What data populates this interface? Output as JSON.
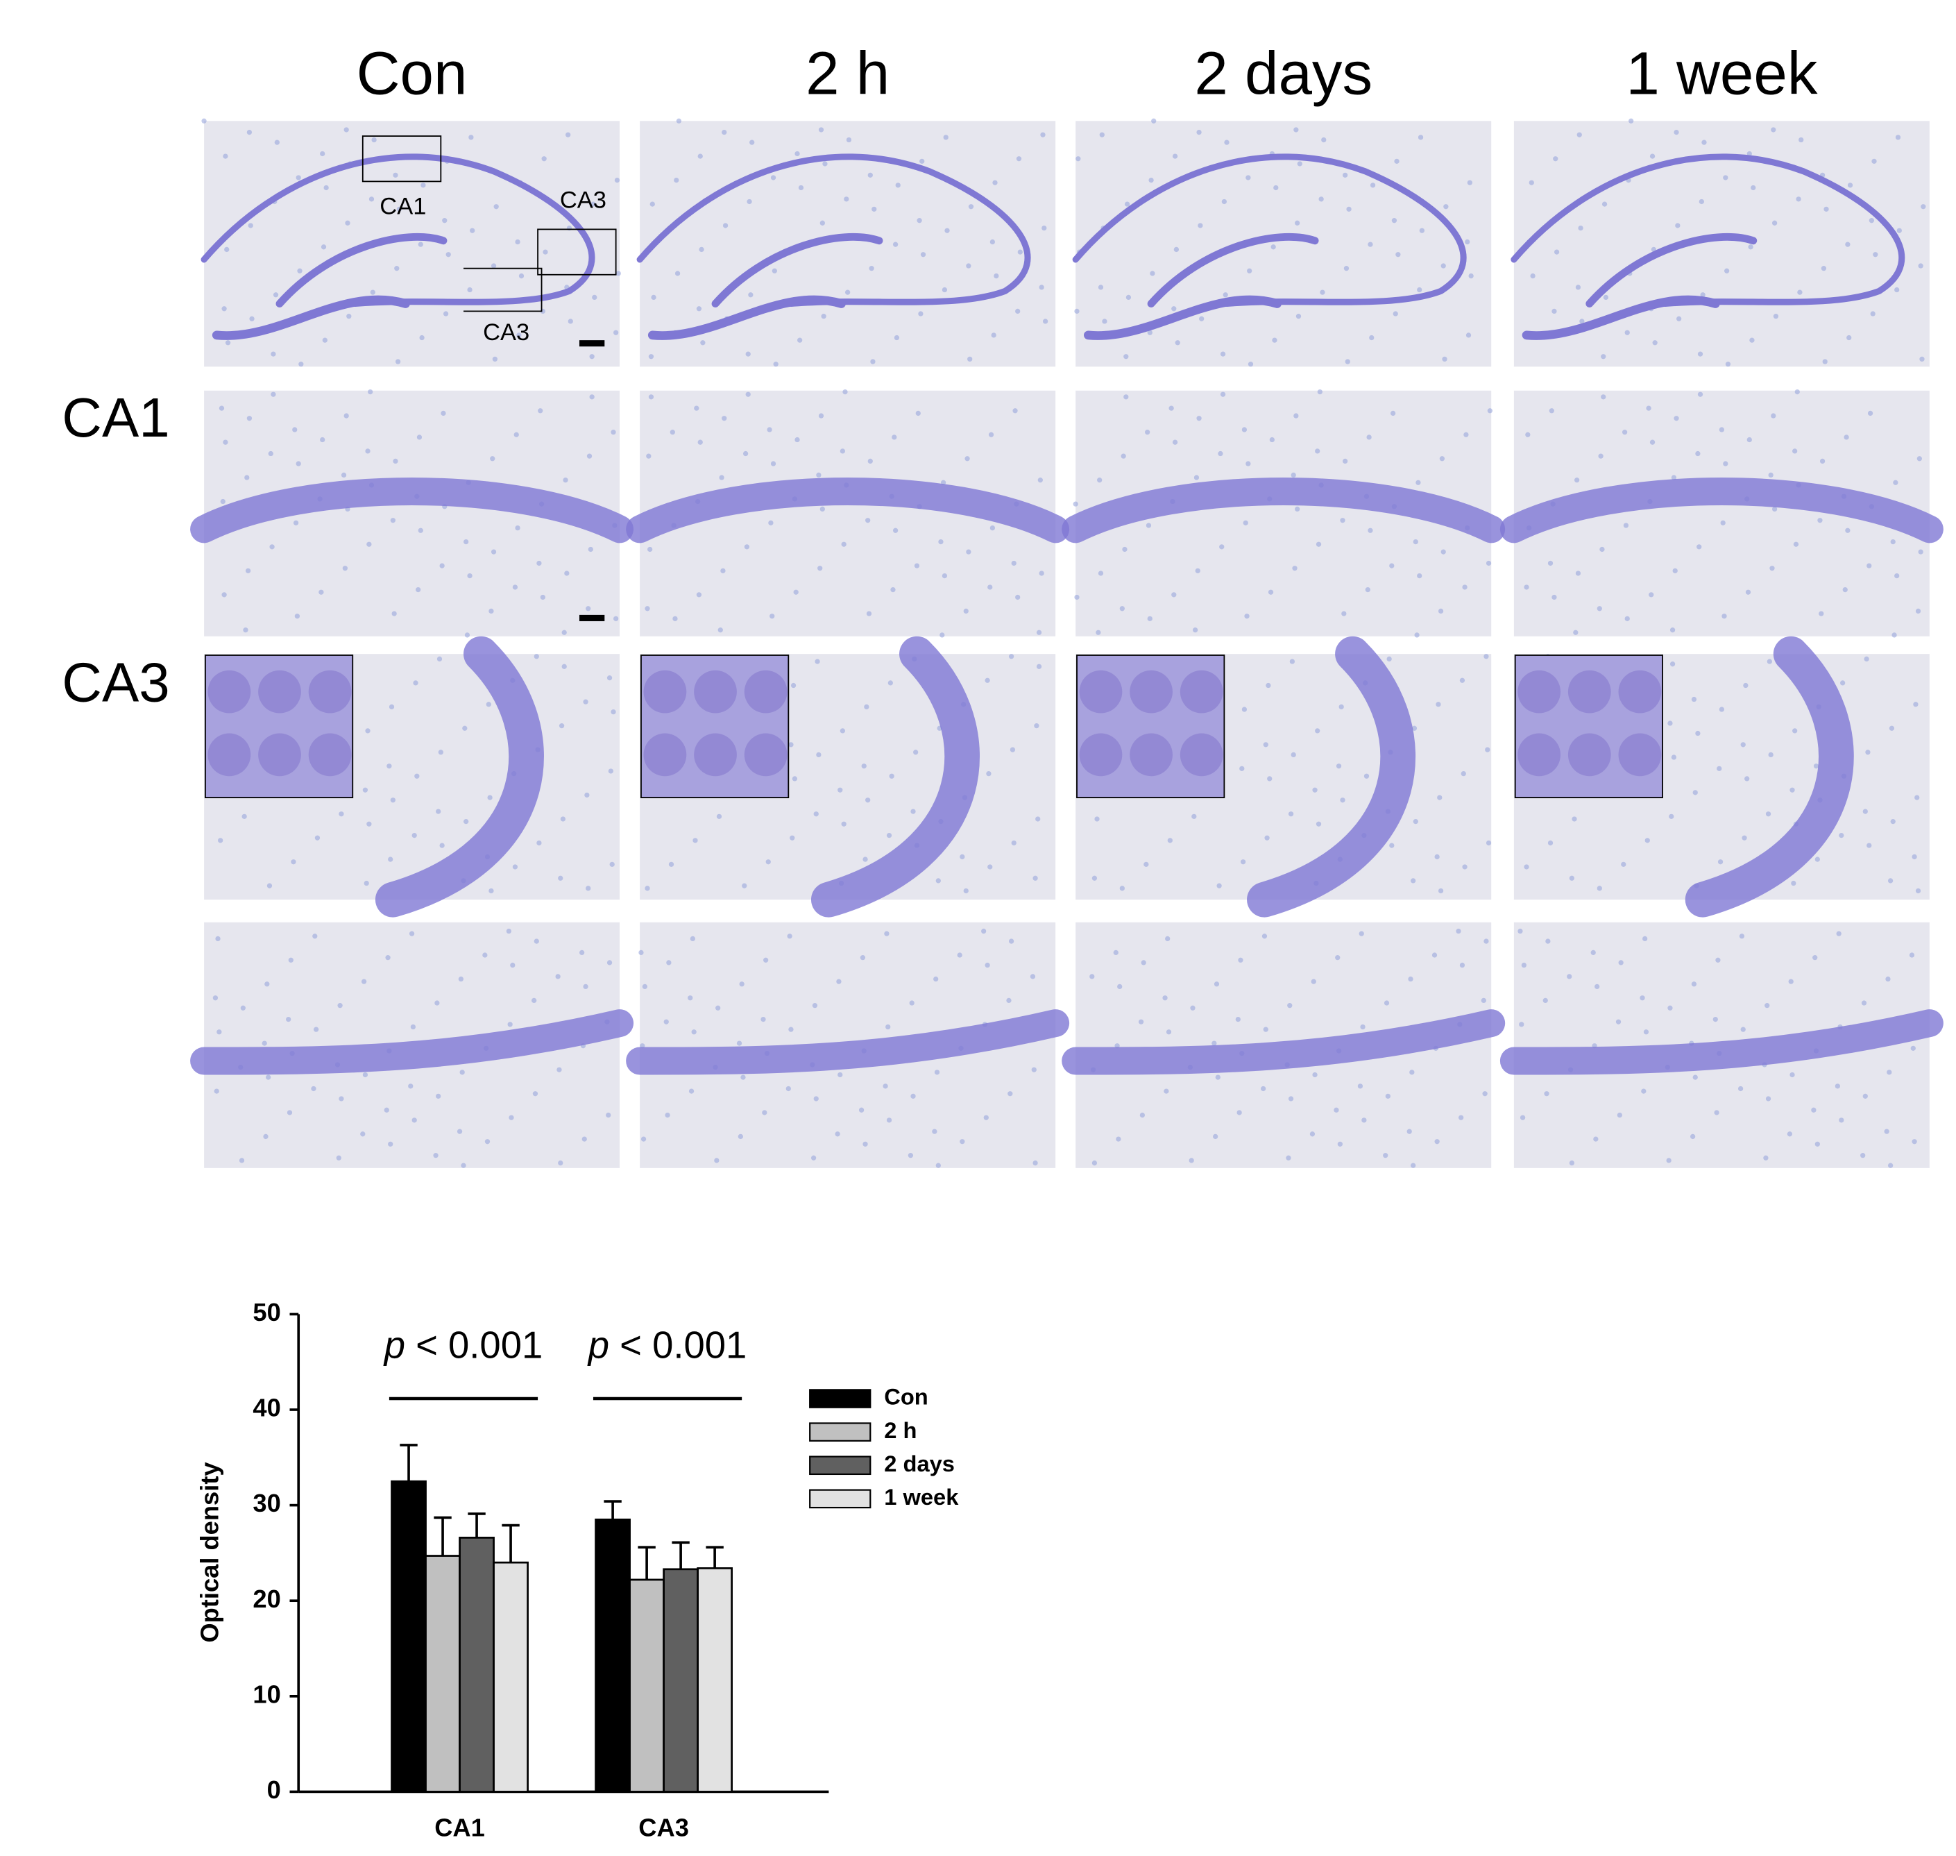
{
  "figure": {
    "columns": [
      "Con",
      "2 h",
      "2 days",
      "1 week"
    ],
    "rows": [
      "CA1",
      "CA3"
    ],
    "overview_labels": [
      "CA1",
      "CA3",
      "CA3"
    ]
  },
  "chart_data": {
    "type": "bar",
    "categories": [
      "CA1",
      "CA3"
    ],
    "y_label": "Optical density",
    "ylim": [
      0,
      50
    ],
    "yticks": [
      0,
      10,
      20,
      30,
      40,
      50
    ],
    "series": [
      {
        "name": "Con",
        "color": "#000000",
        "values": [
          32.5,
          28.5
        ],
        "errors": [
          3.8,
          1.9
        ]
      },
      {
        "name": "2 h",
        "color": "#c0c0c0",
        "values": [
          24.7,
          22.2
        ],
        "errors": [
          4.0,
          3.4
        ]
      },
      {
        "name": "2 days",
        "color": "#606060",
        "values": [
          26.6,
          23.3
        ],
        "errors": [
          2.5,
          2.8
        ]
      },
      {
        "name": "1 week",
        "color": "#e2e2e2",
        "values": [
          24.0,
          23.4
        ],
        "errors": [
          3.9,
          2.2
        ]
      }
    ],
    "annotations": [
      {
        "italic": "p",
        "text": "< 0.001"
      },
      {
        "italic": "p",
        "text": "< 0.001"
      }
    ],
    "legend": "right"
  }
}
